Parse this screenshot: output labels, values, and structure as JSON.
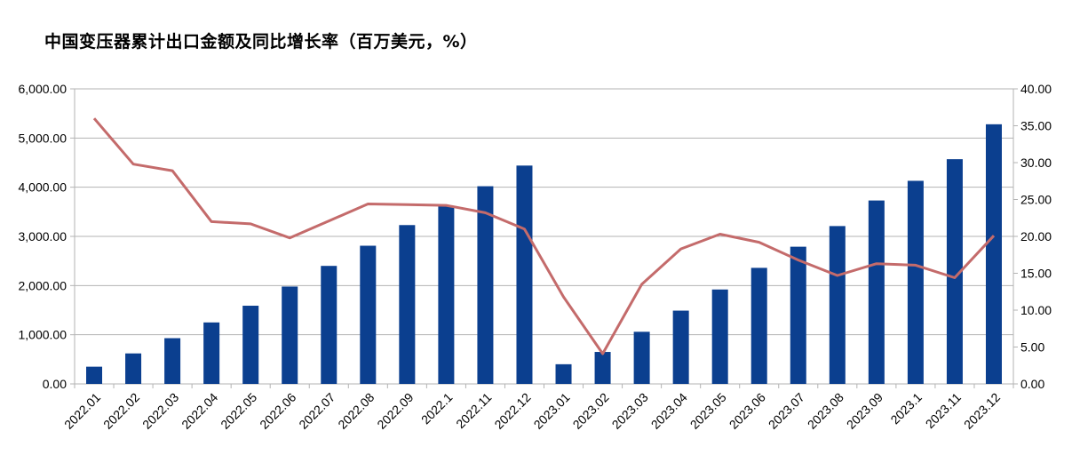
{
  "chart_data": {
    "type": "bar+line",
    "title": "中国变压器累计出口金额及同比增长率（百万美元，%）",
    "categories": [
      "2022.01",
      "2022.02",
      "2022.03",
      "2022.04",
      "2022.05",
      "2022.06",
      "2022.07",
      "2022.08",
      "2022.09",
      "2022.1",
      "2022.11",
      "2022.12",
      "2023.01",
      "2023.02",
      "2023.03",
      "2023.04",
      "2023.05",
      "2023.06",
      "2023.07",
      "2023.08",
      "2023.09",
      "2023.1",
      "2023.11",
      "2023.12"
    ],
    "series": [
      {
        "type": "bar",
        "axis": "left",
        "color": "#0B3F8F",
        "values": [
          350,
          620,
          930,
          1250,
          1590,
          1980,
          2400,
          2810,
          3230,
          3610,
          4020,
          4440,
          400,
          650,
          1060,
          1490,
          1920,
          2360,
          2790,
          3210,
          3730,
          4130,
          4570,
          5280
        ]
      },
      {
        "type": "line",
        "axis": "right",
        "color": "#C46B6B",
        "values": [
          36.0,
          29.8,
          28.9,
          22.0,
          21.7,
          19.8,
          22.1,
          24.4,
          24.3,
          24.2,
          23.2,
          21.0,
          11.8,
          4.1,
          13.5,
          18.3,
          20.3,
          19.2,
          16.8,
          14.7,
          16.3,
          16.1,
          14.4,
          20.1
        ]
      }
    ],
    "y_left": {
      "range": [
        0,
        6000
      ],
      "ticks": [
        "0.00",
        "1,000.00",
        "2,000.00",
        "3,000.00",
        "4,000.00",
        "5,000.00",
        "6,000.00"
      ]
    },
    "y_right": {
      "range": [
        0,
        40
      ],
      "ticks": [
        "0.00",
        "5.00",
        "10.00",
        "15.00",
        "20.00",
        "25.00",
        "30.00",
        "35.00",
        "40.00"
      ]
    },
    "grid": true,
    "legend": "none"
  }
}
